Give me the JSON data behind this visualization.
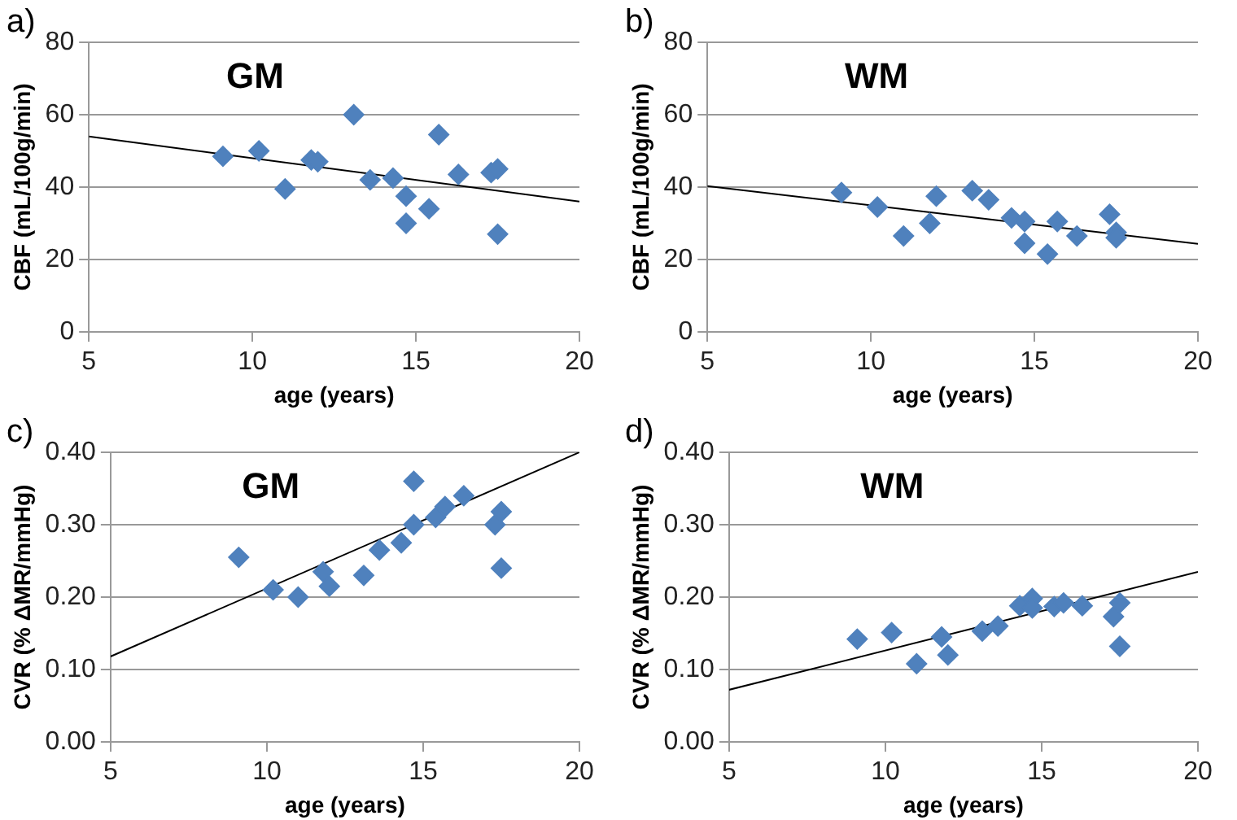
{
  "chart_data": [
    {
      "type": "scatter",
      "title": "a)",
      "annotations": [
        "GM"
      ],
      "xlabel": "age (years)",
      "ylabel": "CBF (mL/100g/min)",
      "xlim": [
        5,
        20
      ],
      "xticks": [
        5,
        10,
        15,
        20
      ],
      "ylim": [
        0,
        80
      ],
      "yticks": [
        0,
        20,
        40,
        60,
        80
      ],
      "grid": "y",
      "legend": false,
      "series": [
        {
          "marker": "diamond",
          "color": "#4f81bd",
          "x": [
            9.1,
            10.2,
            11.0,
            11.8,
            12.0,
            13.1,
            13.6,
            14.3,
            14.7,
            14.7,
            15.4,
            15.7,
            16.3,
            17.3,
            17.5,
            17.5
          ],
          "values": [
            48.5,
            50,
            39.5,
            47.5,
            47,
            60,
            42,
            42.5,
            37.5,
            30,
            34,
            54.5,
            43.5,
            44,
            45,
            27
          ]
        },
        {
          "type": "line",
          "marker": "none",
          "color": "#000000",
          "x": [
            5,
            20
          ],
          "values": [
            54,
            36
          ]
        }
      ]
    },
    {
      "type": "scatter",
      "title": "b)",
      "annotations": [
        "WM"
      ],
      "xlabel": "age (years)",
      "ylabel": "CBF (mL/100g/min)",
      "xlim": [
        5,
        20
      ],
      "xticks": [
        5,
        10,
        15,
        20
      ],
      "ylim": [
        0,
        80
      ],
      "yticks": [
        0,
        20,
        40,
        60,
        80
      ],
      "grid": "y",
      "legend": false,
      "series": [
        {
          "marker": "diamond",
          "color": "#4f81bd",
          "x": [
            9.1,
            10.2,
            11.0,
            11.8,
            12.0,
            13.1,
            13.6,
            14.3,
            14.7,
            14.7,
            15.4,
            15.7,
            16.3,
            17.3,
            17.5,
            17.5
          ],
          "values": [
            38.5,
            34.5,
            26.5,
            30,
            37.5,
            39,
            36.5,
            31.5,
            30.5,
            24.5,
            21.5,
            30.5,
            26.5,
            32.5,
            27.5,
            26
          ]
        },
        {
          "type": "line",
          "marker": "none",
          "color": "#000000",
          "x": [
            5,
            20
          ],
          "values": [
            40.3,
            24.3
          ]
        }
      ]
    },
    {
      "type": "scatter",
      "title": "c)",
      "annotations": [
        "GM"
      ],
      "xlabel": "age (years)",
      "ylabel": "CVR (% ΔMR/mmHg)",
      "xlim": [
        5,
        20
      ],
      "xticks": [
        5,
        10,
        15,
        20
      ],
      "ylim": [
        0,
        0.4
      ],
      "yticks": [
        {
          "value": 0,
          "label": "0.00"
        },
        {
          "value": 0.1,
          "label": "0.10"
        },
        {
          "value": 0.2,
          "label": "0.20"
        },
        {
          "value": 0.3,
          "label": "0.30"
        },
        {
          "value": 0.4,
          "label": "0.40"
        }
      ],
      "grid": "y",
      "legend": false,
      "series": [
        {
          "marker": "diamond",
          "color": "#4f81bd",
          "x": [
            9.1,
            10.2,
            11.0,
            11.8,
            12.0,
            13.1,
            13.6,
            14.3,
            14.7,
            14.7,
            15.4,
            15.7,
            16.3,
            17.3,
            17.5,
            17.5
          ],
          "values": [
            0.255,
            0.21,
            0.2,
            0.235,
            0.215,
            0.23,
            0.265,
            0.275,
            0.3,
            0.36,
            0.31,
            0.325,
            0.34,
            0.3,
            0.318,
            0.24
          ]
        },
        {
          "type": "line",
          "marker": "none",
          "color": "#000000",
          "x": [
            5,
            20
          ],
          "values": [
            0.118,
            0.4
          ]
        }
      ]
    },
    {
      "type": "scatter",
      "title": "d)",
      "annotations": [
        "WM"
      ],
      "xlabel": "age (years)",
      "ylabel": "CVR (% ΔMR/mmHg)",
      "xlim": [
        5,
        20
      ],
      "xticks": [
        5,
        10,
        15,
        20
      ],
      "ylim": [
        0,
        0.4
      ],
      "yticks": [
        {
          "value": 0,
          "label": "0.00"
        },
        {
          "value": 0.1,
          "label": "0.10"
        },
        {
          "value": 0.2,
          "label": "0.20"
        },
        {
          "value": 0.3,
          "label": "0.30"
        },
        {
          "value": 0.4,
          "label": "0.40"
        }
      ],
      "grid": "y",
      "legend": false,
      "series": [
        {
          "marker": "diamond",
          "color": "#4f81bd",
          "x": [
            9.1,
            10.2,
            11.0,
            11.8,
            12.0,
            13.1,
            13.6,
            14.3,
            14.7,
            14.7,
            15.4,
            15.7,
            16.3,
            17.3,
            17.5,
            17.5
          ],
          "values": [
            0.142,
            0.151,
            0.108,
            0.145,
            0.12,
            0.153,
            0.16,
            0.188,
            0.198,
            0.185,
            0.187,
            0.192,
            0.188,
            0.173,
            0.192,
            0.132
          ]
        },
        {
          "type": "line",
          "marker": "none",
          "color": "#000000",
          "x": [
            5,
            20
          ],
          "values": [
            0.072,
            0.235
          ]
        }
      ]
    }
  ]
}
